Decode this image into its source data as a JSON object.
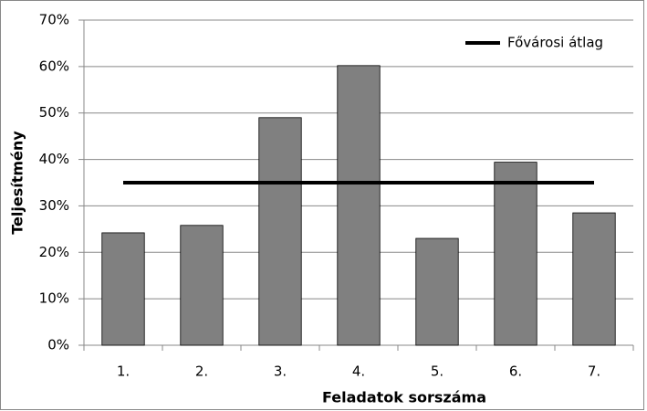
{
  "chart_data": {
    "type": "bar",
    "x_label": "Feladatok sorszáma",
    "y_label": "Teljesítmény",
    "categories": [
      "1.",
      "2.",
      "3.",
      "4.",
      "5.",
      "6.",
      "7."
    ],
    "values": [
      24.2,
      25.8,
      49,
      60.2,
      23,
      39.4,
      28.5
    ],
    "color": "#808080",
    "lines": [
      {
        "name": "Fővárosi átlag",
        "color": "#000000",
        "values": [
          35,
          35,
          35,
          35,
          35,
          35,
          35
        ]
      }
    ],
    "ylim": [
      0,
      70
    ],
    "yticks": [
      {
        "value": 0,
        "label": "0%"
      },
      {
        "value": 10,
        "label": "10%"
      },
      {
        "value": 20,
        "label": "20%"
      },
      {
        "value": 30,
        "label": "30%"
      },
      {
        "value": 40,
        "label": "40%"
      },
      {
        "value": 50,
        "label": "50%"
      },
      {
        "value": 60,
        "label": "60%"
      },
      {
        "value": 70,
        "label": "70%"
      }
    ],
    "grid": true
  }
}
